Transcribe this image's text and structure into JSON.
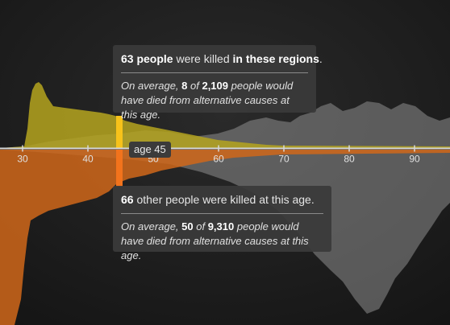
{
  "chart_data": {
    "type": "area",
    "x_axis": {
      "ticks": [
        30,
        40,
        50,
        60,
        70,
        80,
        90
      ]
    },
    "highlight_age": 45,
    "highlight_label": "age 45",
    "top_series_colors": {
      "regions": "#b5a51e",
      "alternative": "#8e8e8e",
      "highlight": "#f7c21a"
    },
    "bottom_series_colors": {
      "others": "#d0671a",
      "alternative": "#8e8e8e",
      "highlight": "#f2731c"
    },
    "tooltip_top": {
      "count": "63 people",
      "text1": " were killed ",
      "region": "in these regions",
      "period": ".",
      "note_pre": "On average, ",
      "note_a": "8",
      "note_mid": " of ",
      "note_b": "2,109",
      "note_post": " people would have died from alternative causes at this age."
    },
    "tooltip_bottom": {
      "count": "66",
      "text1": " other people were killed at this age.",
      "note_pre": "On average, ",
      "note_a": "50",
      "note_mid": " of ",
      "note_b": "9,310",
      "note_post": " people would have died from alternative causes at this age."
    }
  }
}
